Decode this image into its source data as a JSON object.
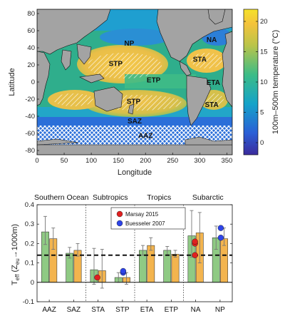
{
  "chart_data": [
    {
      "type": "heatmap",
      "xlabel": "Longitude",
      "ylabel": "Latitude",
      "xlim": [
        0,
        360
      ],
      "ylim": [
        -85,
        85
      ],
      "xticks": [
        0,
        50,
        100,
        150,
        200,
        250,
        300,
        350
      ],
      "yticks": [
        80,
        60,
        40,
        20,
        0,
        -20,
        -40,
        -60,
        -80
      ],
      "colorbar": {
        "label": "100m–500m temperature (°C)",
        "range": [
          -2,
          22
        ],
        "ticks": [
          0,
          5,
          10,
          15,
          20
        ]
      },
      "regions": [
        {
          "name": "NP",
          "lon": 170,
          "lat": 46
        },
        {
          "name": "NA",
          "lon": 322,
          "lat": 50
        },
        {
          "name": "STA",
          "lon": 300,
          "lat": 27
        },
        {
          "name": "STP",
          "lon": 145,
          "lat": 22
        },
        {
          "name": "ETP",
          "lon": 215,
          "lat": 3
        },
        {
          "name": "ETA",
          "lon": 325,
          "lat": 0
        },
        {
          "name": "STP",
          "lon": 178,
          "lat": -22
        },
        {
          "name": "STA",
          "lon": 322,
          "lat": -26
        },
        {
          "name": "SAZ",
          "lon": 180,
          "lat": -45
        },
        {
          "name": "AAZ",
          "lon": 200,
          "lat": -62
        }
      ]
    },
    {
      "type": "bar",
      "ylabel": "T",
      "ylabel_sub": "eff",
      "ylabel_tail": "(Z",
      "ylabel_sub2": "eu",
      "ylabel_end": "→1000m)",
      "ylim": [
        -0.1,
        0.4
      ],
      "yticks": [
        "-0.1",
        "0",
        "0.1",
        "0.2",
        "0.3",
        "0.4"
      ],
      "groups": [
        "Southern Ocean",
        "Subtropics",
        "Tropics",
        "Subarctic"
      ],
      "categories": [
        "AAZ",
        "SAZ",
        "STA",
        "STP",
        "ETA",
        "ETP",
        "NA",
        "NP"
      ],
      "reference_line": 0.14,
      "series": [
        {
          "color": "#8fca84",
          "values": [
            0.26,
            0.15,
            0.065,
            0.025,
            0.165,
            0.165,
            0.24,
            0.23
          ],
          "err_low": [
            0.195,
            0.125,
            -0.01,
            0.0,
            0.14,
            0.14,
            0.13,
            0.17
          ],
          "err_high": [
            0.34,
            0.18,
            0.175,
            0.05,
            0.19,
            0.185,
            0.37,
            0.29
          ]
        },
        {
          "color": "#f3b44e",
          "values": [
            0.225,
            0.165,
            0.06,
            0.025,
            0.19,
            0.145,
            0.255,
            0.225
          ],
          "err_low": [
            0.17,
            0.135,
            -0.03,
            -0.01,
            0.165,
            0.13,
            0.1,
            0.19
          ],
          "err_high": [
            0.28,
            0.2,
            0.17,
            0.05,
            0.23,
            0.165,
            0.36,
            0.28
          ]
        }
      ],
      "markers": [
        {
          "name": "Marsay 2015",
          "color": "#e02020",
          "points": [
            {
              "cat": "STA",
              "y": 0.025
            },
            {
              "cat": "NA",
              "y": 0.2
            },
            {
              "cat": "NA",
              "y": 0.21
            },
            {
              "cat": "NA",
              "y": 0.14
            }
          ]
        },
        {
          "name": "Buesseler 2007",
          "color": "#2e44e8",
          "points": [
            {
              "cat": "STP",
              "y": 0.05
            },
            {
              "cat": "STP",
              "y": 0.058
            },
            {
              "cat": "NP",
              "y": 0.28
            },
            {
              "cat": "NP",
              "y": 0.23
            }
          ]
        }
      ],
      "legend_position": "top-center"
    }
  ]
}
